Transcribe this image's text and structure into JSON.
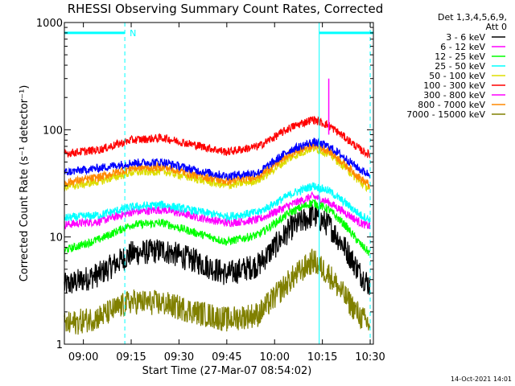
{
  "chart_data": {
    "type": "line",
    "title": "RHESSI Observing Summary Count Rates, Corrected",
    "xlabel": "Start Time (27-Mar-07 08:54:02)",
    "ylabel": "Corrected Count Rate (s⁻¹ detector⁻¹)",
    "yscale": "log",
    "ylim": [
      1,
      1000
    ],
    "xlim": [
      "08:54:02",
      "10:31:00"
    ],
    "x_ticks": [
      "09:00",
      "09:15",
      "09:30",
      "09:45",
      "10:00",
      "10:15",
      "10:30"
    ],
    "y_ticks": [
      "1",
      "10",
      "100",
      "1000"
    ],
    "legend": {
      "header": [
        "Det 1,3,4,5,6,9,",
        "Att 0"
      ],
      "position": "top-right"
    },
    "markers": {
      "night_label": "N",
      "night_intervals": [
        [
          "08:54:02",
          "09:13:00"
        ],
        [
          "10:14:00",
          "10:31:00"
        ]
      ],
      "dashed_lines": [
        "08:54:02",
        "09:13:00",
        "10:30:00"
      ],
      "solid_lines": [
        "10:14:00"
      ]
    },
    "series": [
      {
        "name": "3 - 6 keV",
        "color": "#000000",
        "points": [
          [
            "08:54",
            3.5
          ],
          [
            "09:05",
            4.5
          ],
          [
            "09:15",
            7
          ],
          [
            "09:25",
            7.5
          ],
          [
            "09:35",
            6
          ],
          [
            "09:45",
            4.5
          ],
          [
            "09:55",
            5.5
          ],
          [
            "10:05",
            12
          ],
          [
            "10:12",
            16
          ],
          [
            "10:17",
            13
          ],
          [
            "10:22",
            8
          ],
          [
            "10:27",
            4.5
          ],
          [
            "10:30",
            3.5
          ]
        ]
      },
      {
        "name": "6 - 12 keV",
        "color": "#ff00ff",
        "points": [
          [
            "08:54",
            13
          ],
          [
            "09:05",
            14
          ],
          [
            "09:15",
            17
          ],
          [
            "09:25",
            18
          ],
          [
            "09:35",
            15.5
          ],
          [
            "09:45",
            13.5
          ],
          [
            "09:55",
            14.5
          ],
          [
            "10:05",
            20
          ],
          [
            "10:12",
            24
          ],
          [
            "10:17",
            21
          ],
          [
            "10:22",
            17
          ],
          [
            "10:27",
            13.5
          ],
          [
            "10:30",
            12.5
          ]
        ]
      },
      {
        "name": "12 - 25 keV",
        "color": "#00ff00",
        "points": [
          [
            "08:54",
            7.5
          ],
          [
            "09:05",
            9.5
          ],
          [
            "09:15",
            13
          ],
          [
            "09:25",
            13.5
          ],
          [
            "09:35",
            11
          ],
          [
            "09:45",
            9
          ],
          [
            "09:55",
            10.5
          ],
          [
            "10:05",
            17
          ],
          [
            "10:12",
            21
          ],
          [
            "10:17",
            18
          ],
          [
            "10:22",
            13
          ],
          [
            "10:27",
            8.5
          ],
          [
            "10:30",
            7
          ]
        ]
      },
      {
        "name": "25 - 50 keV",
        "color": "#00ffff",
        "points": [
          [
            "08:54",
            15
          ],
          [
            "09:05",
            16
          ],
          [
            "09:15",
            19
          ],
          [
            "09:25",
            20
          ],
          [
            "09:35",
            17.5
          ],
          [
            "09:45",
            15.5
          ],
          [
            "09:55",
            17
          ],
          [
            "10:05",
            25
          ],
          [
            "10:12",
            30
          ],
          [
            "10:17",
            27
          ],
          [
            "10:22",
            21
          ],
          [
            "10:27",
            16
          ],
          [
            "10:30",
            14.5
          ]
        ]
      },
      {
        "name": "50 - 100 keV",
        "color": "#dddd00",
        "points": [
          [
            "08:54",
            29
          ],
          [
            "09:05",
            33
          ],
          [
            "09:15",
            40
          ],
          [
            "09:25",
            41
          ],
          [
            "09:35",
            35
          ],
          [
            "09:45",
            30
          ],
          [
            "09:55",
            34
          ],
          [
            "10:05",
            55
          ],
          [
            "10:12",
            68
          ],
          [
            "10:17",
            60
          ],
          [
            "10:22",
            45
          ],
          [
            "10:27",
            32
          ],
          [
            "10:30",
            28
          ]
        ]
      },
      {
        "name": "100 - 300 keV",
        "color": "#ff0000",
        "points": [
          [
            "08:54",
            60
          ],
          [
            "09:05",
            65
          ],
          [
            "09:15",
            80
          ],
          [
            "09:25",
            84
          ],
          [
            "09:35",
            72
          ],
          [
            "09:45",
            62
          ],
          [
            "09:55",
            70
          ],
          [
            "10:05",
            105
          ],
          [
            "10:12",
            125
          ],
          [
            "10:17",
            110
          ],
          [
            "10:22",
            85
          ],
          [
            "10:27",
            65
          ],
          [
            "10:30",
            58
          ]
        ]
      },
      {
        "name": "300 - 800 keV",
        "color": "#ff00ff",
        "points": []
      },
      {
        "name": "800 - 7000 keV",
        "color": "#ff8800",
        "points": [
          [
            "08:54",
            32
          ],
          [
            "09:05",
            36
          ],
          [
            "09:15",
            44
          ],
          [
            "09:25",
            45
          ],
          [
            "09:35",
            38
          ],
          [
            "09:45",
            33
          ],
          [
            "09:55",
            37
          ],
          [
            "10:05",
            60
          ],
          [
            "10:12",
            72
          ],
          [
            "10:17",
            64
          ],
          [
            "10:22",
            48
          ],
          [
            "10:27",
            35
          ],
          [
            "10:30",
            30
          ]
        ]
      },
      {
        "name": "7000 - 15000 keV",
        "color": "#808000",
        "points": [
          [
            "08:54",
            1.5
          ],
          [
            "09:05",
            1.8
          ],
          [
            "09:15",
            2.5
          ],
          [
            "09:25",
            2.4
          ],
          [
            "09:35",
            2
          ],
          [
            "09:45",
            1.7
          ],
          [
            "09:55",
            1.9
          ],
          [
            "10:05",
            4
          ],
          [
            "10:12",
            6
          ],
          [
            "10:17",
            4.5
          ],
          [
            "10:22",
            2.8
          ],
          [
            "10:27",
            1.8
          ],
          [
            "10:30",
            1.5
          ]
        ]
      },
      {
        "name": "3 - 6 keV spike",
        "color": "#0000ff",
        "legend": false,
        "points": [
          [
            "08:54",
            40
          ],
          [
            "09:05",
            44
          ],
          [
            "09:15",
            49
          ],
          [
            "09:25",
            50
          ],
          [
            "09:35",
            42
          ],
          [
            "09:45",
            37
          ],
          [
            "09:55",
            40
          ],
          [
            "10:05",
            65
          ],
          [
            "10:12",
            77
          ],
          [
            "10:17",
            70
          ],
          [
            "10:22",
            55
          ],
          [
            "10:27",
            42
          ],
          [
            "10:30",
            38
          ]
        ]
      }
    ]
  },
  "footer": {
    "date": "14-Oct-2021 14:01"
  }
}
